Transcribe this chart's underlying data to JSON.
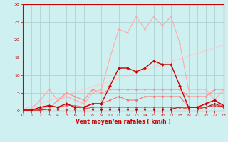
{
  "background_color": "#cff0f0",
  "grid_color": "#aacccc",
  "xlabel": "Vent moyen/en rafales ( km/h )",
  "xlim": [
    0,
    23
  ],
  "ylim": [
    0,
    30
  ],
  "xticks": [
    0,
    1,
    2,
    3,
    4,
    5,
    6,
    7,
    8,
    9,
    10,
    11,
    12,
    13,
    14,
    15,
    16,
    17,
    18,
    19,
    20,
    21,
    22,
    23
  ],
  "yticks": [
    0,
    5,
    10,
    15,
    20,
    25,
    30
  ],
  "lines": [
    {
      "x": [
        0,
        1,
        2,
        3,
        4,
        5,
        6,
        7,
        8,
        9,
        10,
        11,
        12,
        13,
        14,
        15,
        16,
        17,
        18,
        19,
        20,
        21,
        22,
        23
      ],
      "y": [
        0.5,
        0.5,
        3,
        6,
        3,
        4,
        3,
        2,
        5,
        6,
        15,
        23,
        22,
        26.5,
        23,
        26.5,
        24,
        26.5,
        19,
        6,
        6,
        6,
        3,
        6
      ],
      "color": "#ffaaaa",
      "lw": 0.8,
      "marker": "D",
      "markersize": 1.5,
      "zorder": 3
    },
    {
      "x": [
        0,
        1,
        2,
        3,
        4,
        5,
        6,
        7,
        8,
        9,
        10,
        11,
        12,
        13,
        14,
        15,
        16,
        17,
        18,
        19,
        20,
        21,
        22,
        23
      ],
      "y": [
        0.2,
        0.2,
        1,
        1.5,
        1,
        2,
        1,
        1,
        2,
        2,
        7,
        12,
        12,
        11,
        12,
        14,
        13,
        13,
        7,
        1,
        1,
        2,
        3,
        1.5
      ],
      "color": "#cc0000",
      "lw": 1.0,
      "marker": "D",
      "markersize": 2,
      "zorder": 5
    },
    {
      "x": [
        0,
        1,
        2,
        3,
        4,
        5,
        6,
        7,
        8,
        9,
        10,
        11,
        12,
        13,
        14,
        15,
        16,
        17,
        18,
        19,
        20,
        21,
        22,
        23
      ],
      "y": [
        0.5,
        0.5,
        0.5,
        0.5,
        3,
        5,
        4,
        3,
        6,
        5,
        6,
        6,
        6,
        6,
        6,
        6,
        6,
        6,
        6,
        4,
        4,
        4,
        6,
        6
      ],
      "color": "#ff8888",
      "lw": 0.8,
      "marker": "D",
      "markersize": 1.5,
      "zorder": 2
    },
    {
      "x": [
        0,
        1,
        2,
        3,
        4,
        5,
        6,
        7,
        8,
        9,
        10,
        11,
        12,
        13,
        14,
        15,
        16,
        17,
        18,
        19,
        20,
        21,
        22,
        23
      ],
      "y": [
        0.5,
        0.5,
        0.5,
        1.5,
        1,
        1.5,
        1.5,
        1,
        2,
        2,
        3,
        4,
        3,
        3,
        4,
        4,
        4,
        4,
        4,
        1,
        1,
        2,
        3,
        1
      ],
      "color": "#ff6666",
      "lw": 0.7,
      "marker": "D",
      "markersize": 1.5,
      "zorder": 2
    },
    {
      "x": [
        0,
        1,
        2,
        3,
        4,
        5,
        6,
        7,
        8,
        9,
        10,
        11,
        12,
        13,
        14,
        15,
        16,
        17,
        18,
        19,
        20,
        21,
        22,
        23
      ],
      "y": [
        0.2,
        0.2,
        0.2,
        0.5,
        0.5,
        0.5,
        0.5,
        0.5,
        0.5,
        0.5,
        0.5,
        0.5,
        0.5,
        0.5,
        0.5,
        0.5,
        0.5,
        0.5,
        1,
        1,
        1,
        1,
        2,
        1
      ],
      "color": "#880000",
      "lw": 0.7,
      "marker": "D",
      "markersize": 1.5,
      "zorder": 4
    },
    {
      "x": [
        0,
        1,
        2,
        3,
        4,
        5,
        6,
        7,
        8,
        9,
        10,
        11,
        12,
        13,
        14,
        15,
        16,
        17,
        18,
        19,
        20,
        21,
        22,
        23
      ],
      "y": [
        0.2,
        0.2,
        0.2,
        0.5,
        0.5,
        0.5,
        0.5,
        0.5,
        1,
        1,
        1,
        1,
        1,
        1,
        1,
        1,
        1,
        1,
        1,
        0.5,
        0.5,
        1,
        1.5,
        1
      ],
      "color": "#dd3333",
      "lw": 0.7,
      "marker": "D",
      "markersize": 1.5,
      "zorder": 4
    },
    {
      "x": [
        0,
        23
      ],
      "y": [
        0.5,
        18.5
      ],
      "color": "#ffcccc",
      "lw": 0.9,
      "marker": null,
      "markersize": 0,
      "zorder": 1
    }
  ]
}
